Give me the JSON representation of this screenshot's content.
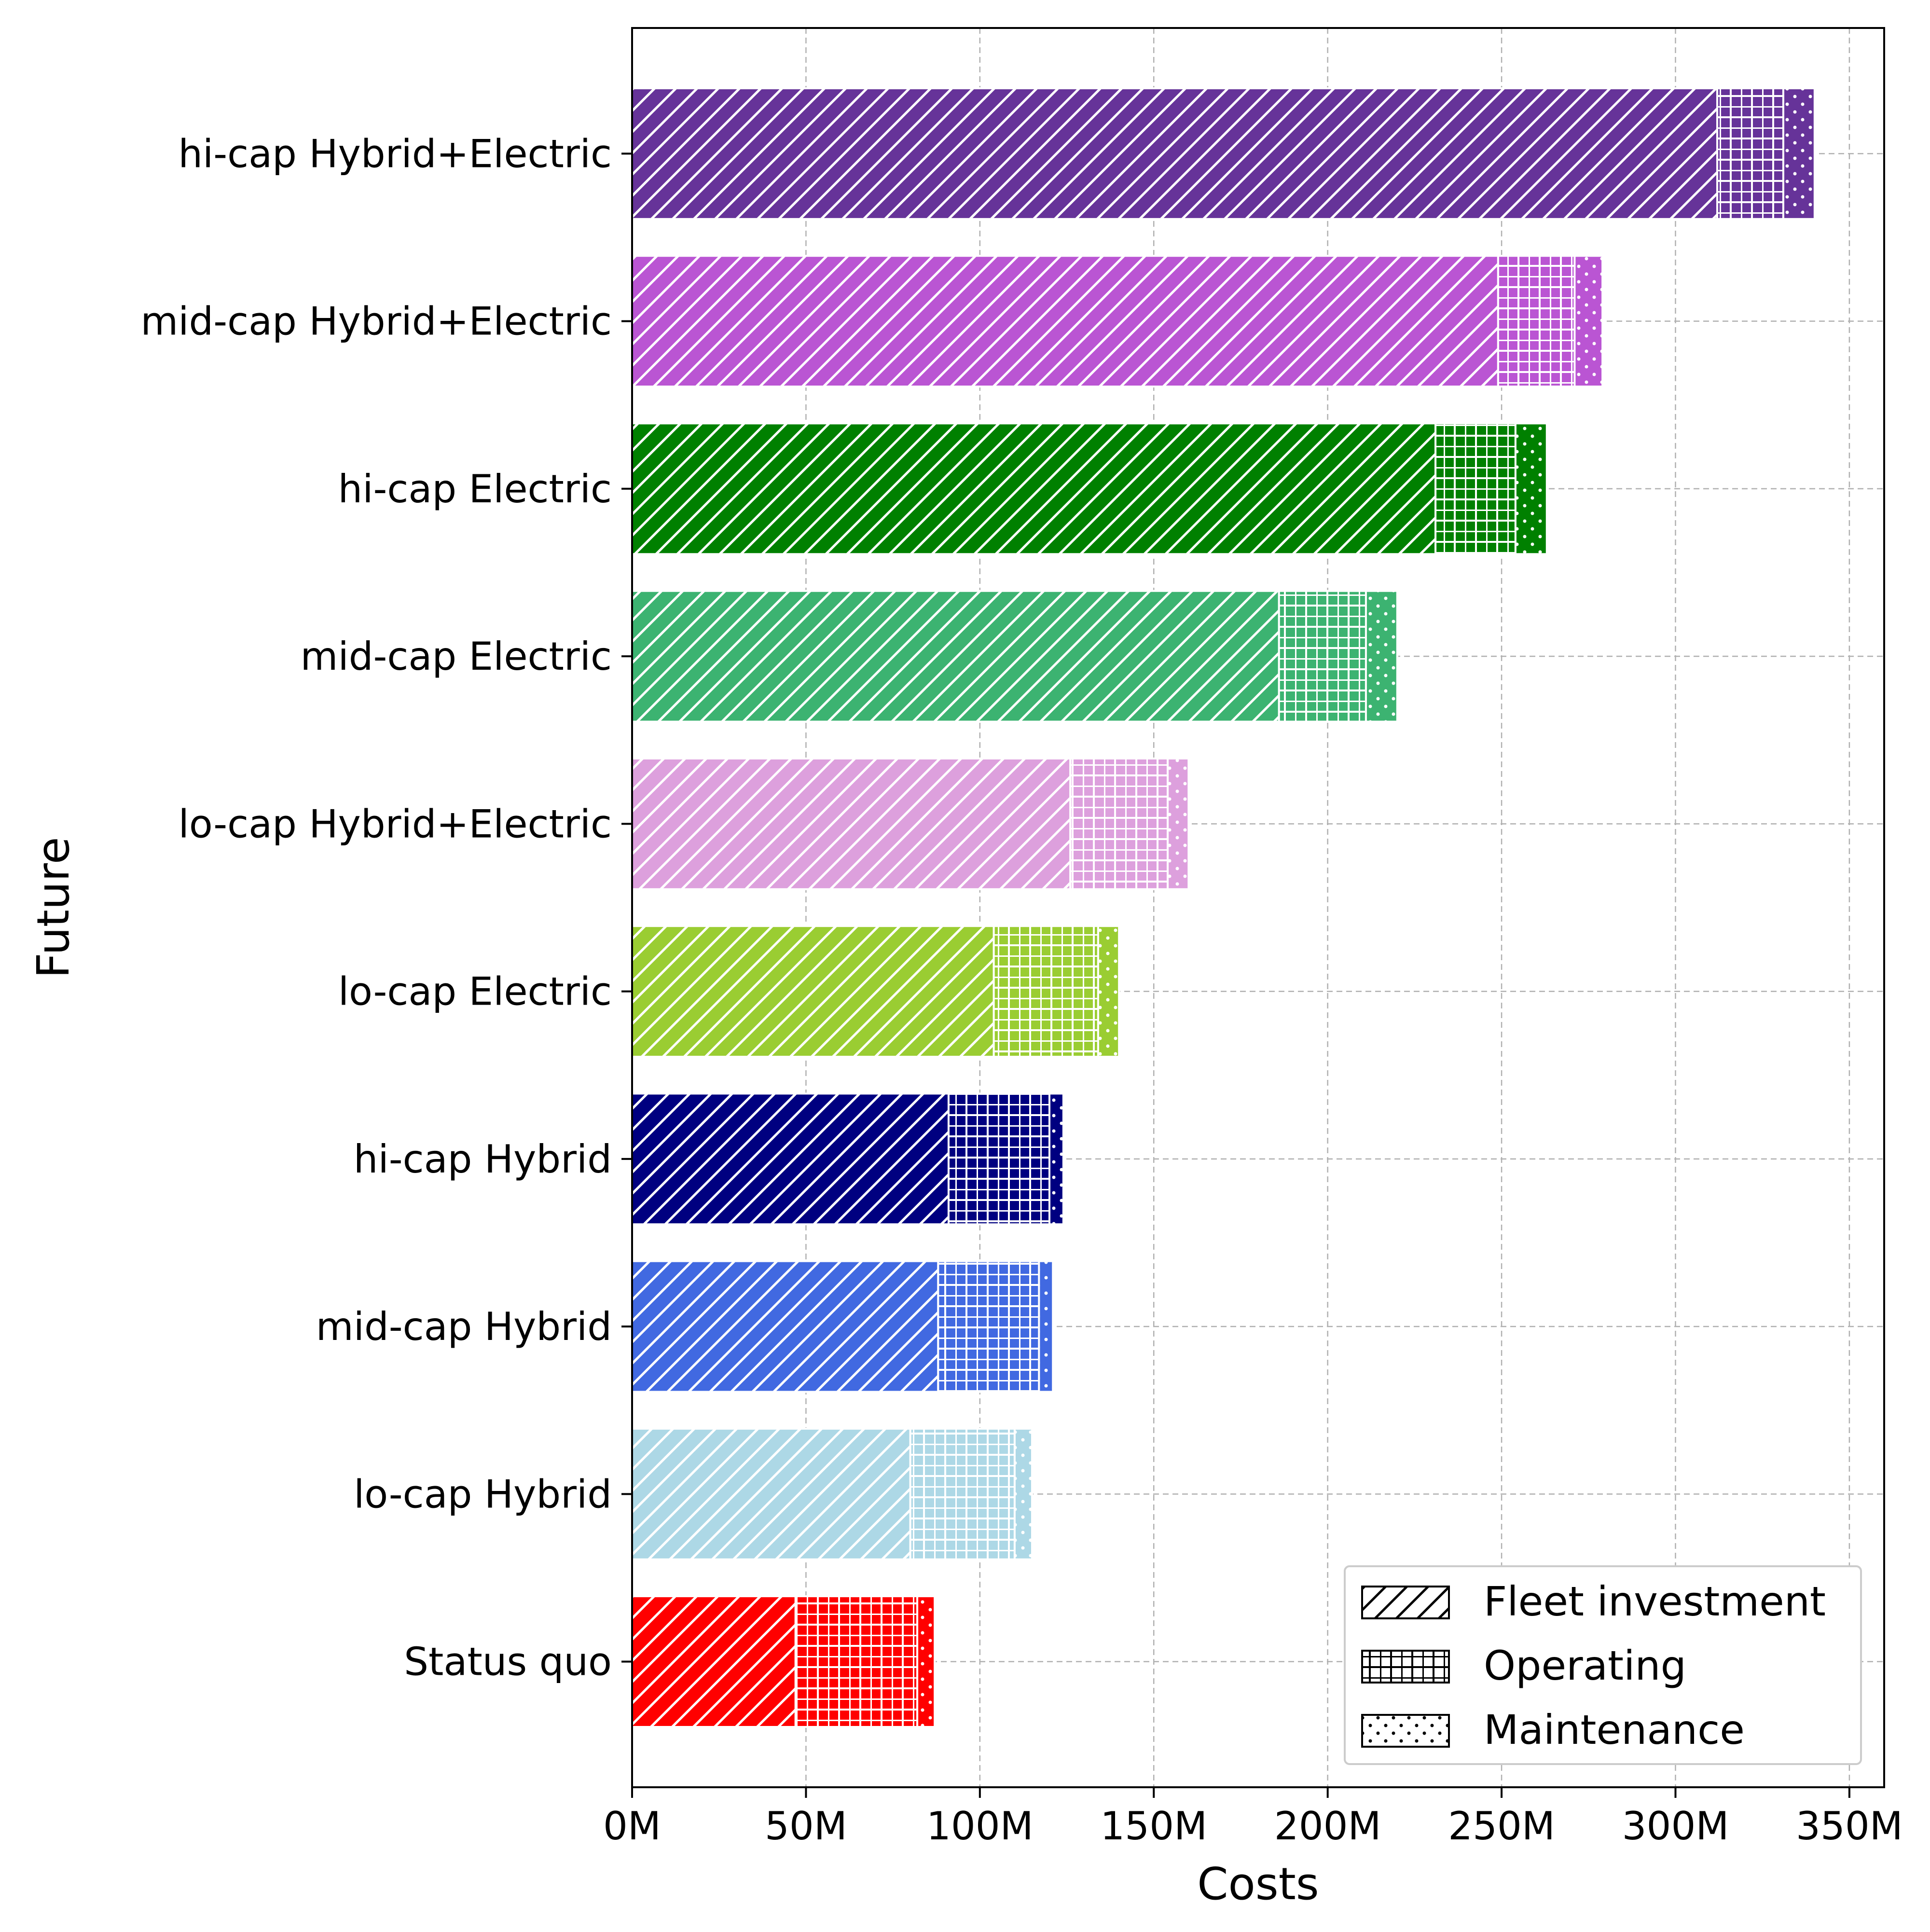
{
  "chart_data": {
    "type": "bar",
    "orientation": "horizontal",
    "stacked": true,
    "title": "",
    "xlabel": "Costs",
    "ylabel": "Future",
    "xlim": [
      0,
      360
    ],
    "x_unit_suffix": "M",
    "x_ticks": [
      0,
      50,
      100,
      150,
      200,
      250,
      300,
      350
    ],
    "x_tick_labels": [
      "0M",
      "50M",
      "100M",
      "150M",
      "200M",
      "250M",
      "300M",
      "350M"
    ],
    "grid": true,
    "legend_position": "bottom-right",
    "categories": [
      "hi-cap Hybrid+Electric",
      "mid-cap Hybrid+Electric",
      "hi-cap Electric",
      "mid-cap Electric",
      "lo-cap Hybrid+Electric",
      "lo-cap Electric",
      "hi-cap Hybrid",
      "mid-cap Hybrid",
      "lo-cap Hybrid",
      "Status quo"
    ],
    "category_colors": [
      "#663399",
      "#ba55d3",
      "#008000",
      "#3cb371",
      "#dda0dd",
      "#9acd32",
      "#000080",
      "#4169e1",
      "#add8e6",
      "#ff0000"
    ],
    "series": [
      {
        "name": "Fleet investment",
        "pattern": "diagonal-hatch",
        "values": [
          312,
          249,
          231,
          186,
          126,
          104,
          91,
          88,
          80,
          47
        ]
      },
      {
        "name": "Operating",
        "pattern": "grid-hatch",
        "values": [
          19,
          22,
          23,
          25,
          28,
          30,
          29,
          29,
          30,
          35
        ]
      },
      {
        "name": "Maintenance",
        "pattern": "dot-hatch",
        "values": [
          9,
          8,
          9,
          9,
          6,
          6,
          4,
          4,
          5,
          5
        ]
      }
    ]
  }
}
